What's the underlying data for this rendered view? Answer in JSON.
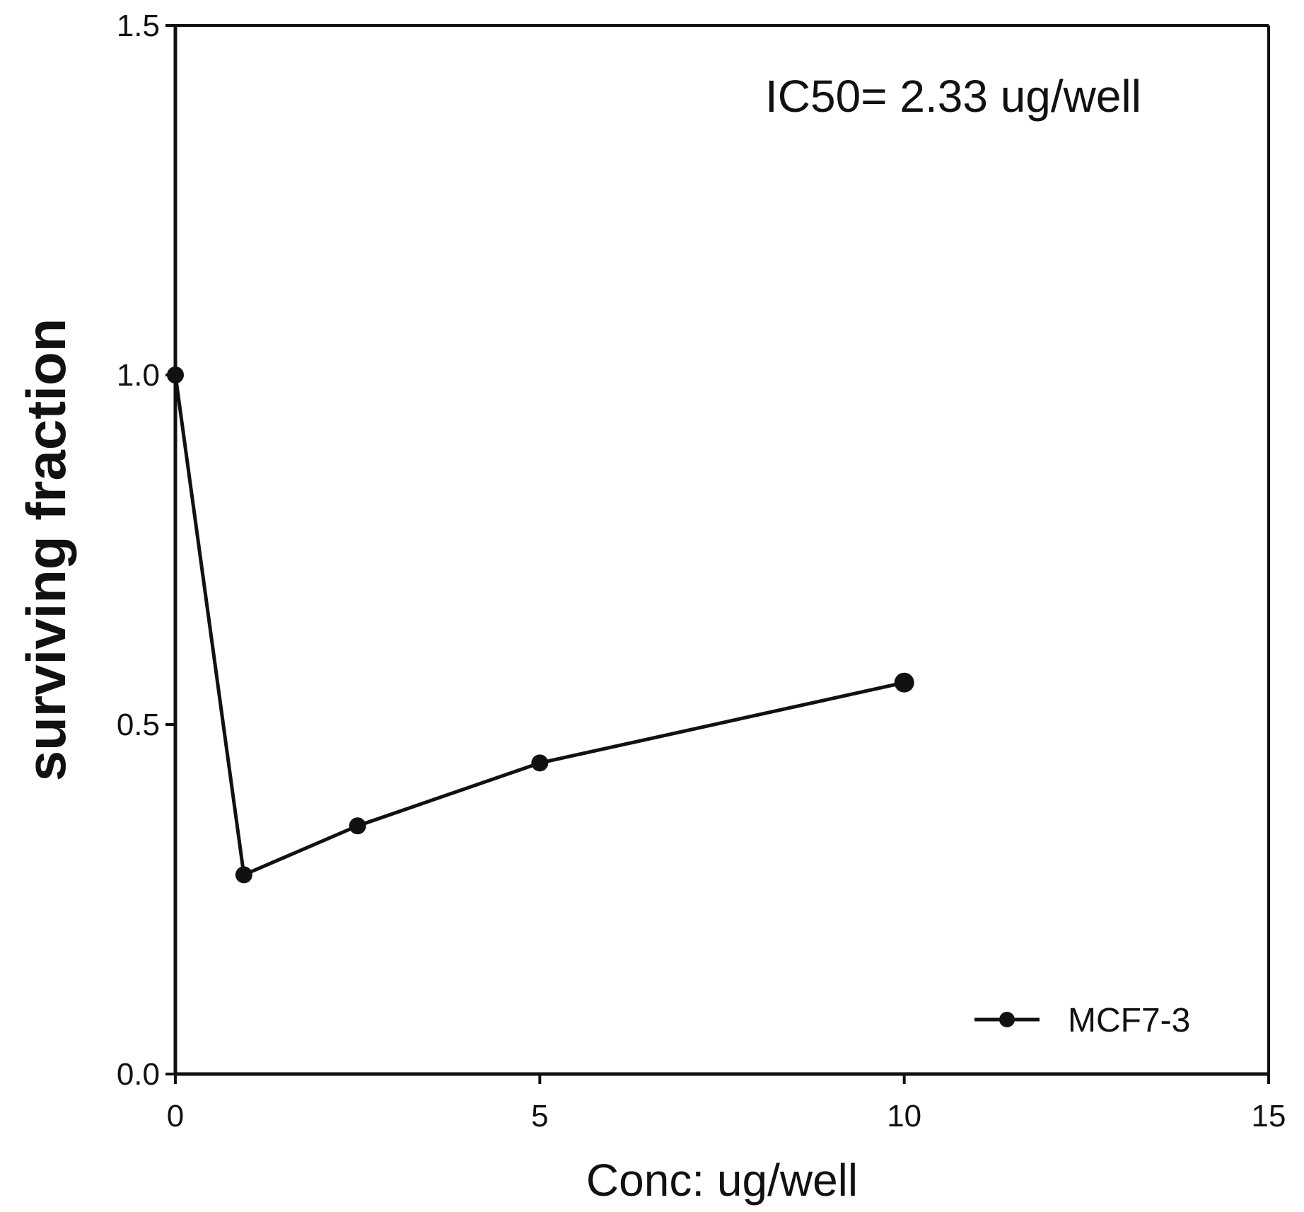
{
  "chart_data": {
    "type": "line",
    "title": "",
    "xlabel": "Conc: ug/well",
    "ylabel": "surviving fraction",
    "xlim": [
      0,
      15
    ],
    "ylim": [
      0,
      1.5
    ],
    "x_ticks": [
      0,
      5,
      10,
      15
    ],
    "x_tick_labels": [
      "0",
      "5",
      "10",
      "15"
    ],
    "y_ticks": [
      0,
      0.5,
      1.0,
      1.5
    ],
    "y_tick_labels": [
      "0.0",
      "0.5",
      "1.0",
      "1.5"
    ],
    "grid": false,
    "legend_position": "bottom-right",
    "annotation": "IC50= 2.33 ug/well",
    "series": [
      {
        "name": "MCF7-3",
        "color": "#111111",
        "x": [
          0,
          0.94,
          2.5,
          5,
          10
        ],
        "y": [
          1.0,
          0.285,
          0.355,
          0.445,
          0.56
        ]
      }
    ]
  }
}
